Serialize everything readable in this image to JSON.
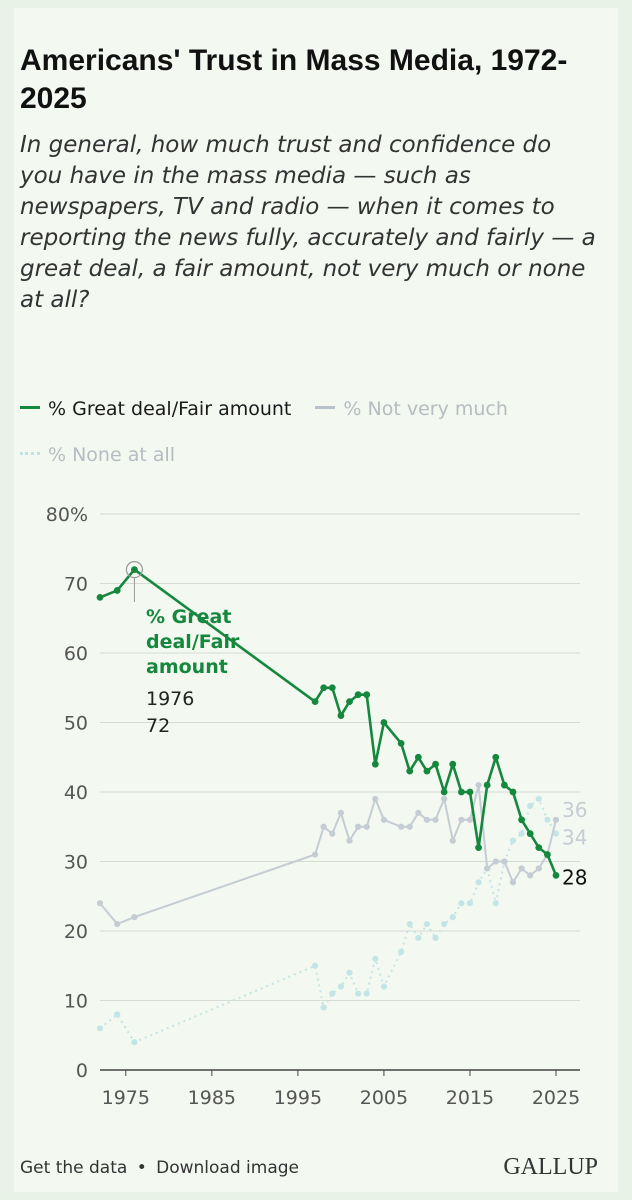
{
  "header": {
    "title": "Americans' Trust in Mass Media, 1972-2025",
    "subtitle": "In general, how much trust and confidence do you have in the mass media — such as newspapers, TV and radio — when it comes to reporting the news fully, accurately and fairly — a great deal, a fair amount, not very much or none at all?"
  },
  "legend": [
    {
      "label": "% Great deal/Fair amount",
      "style": "solid",
      "color": "#16883e",
      "active": true
    },
    {
      "label": "% Not very much",
      "style": "solid",
      "color": "#bfc8d1",
      "active": false
    },
    {
      "label": "% None at all",
      "style": "dotted",
      "color": "#bfe3e4",
      "active": false
    }
  ],
  "footer": {
    "get_data": "Get the data",
    "separator": "•",
    "download": "Download image",
    "logo": "GALLUP"
  },
  "annotation": {
    "series_label_lines": [
      "% Great",
      "deal/Fair",
      "amount"
    ],
    "year": "1976",
    "value": "72"
  },
  "chart_data": {
    "type": "line",
    "title": "Americans' Trust in Mass Media, 1972-2025",
    "xlabel": "",
    "ylabel": "",
    "xlim": [
      1972,
      2025
    ],
    "ylim": [
      0,
      80
    ],
    "x_ticks": [
      1975,
      1985,
      1995,
      2005,
      2015,
      2025
    ],
    "y_ticks": [
      0,
      10,
      20,
      30,
      40,
      50,
      60,
      70,
      80
    ],
    "y_tick_labels": [
      "0",
      "10",
      "20",
      "30",
      "40",
      "50",
      "60",
      "70",
      "80%"
    ],
    "grid": true,
    "legend_position": "top",
    "series": [
      {
        "name": "% Great deal/Fair amount",
        "color": "#16883e",
        "style": "solid",
        "end_label": "28",
        "x": [
          1972,
          1974,
          1976,
          1997,
          1998,
          1999,
          2000,
          2001,
          2002,
          2003,
          2004,
          2005,
          2007,
          2008,
          2009,
          2010,
          2011,
          2012,
          2013,
          2014,
          2015,
          2016,
          2017,
          2018,
          2019,
          2020,
          2021,
          2022,
          2023,
          2024,
          2025
        ],
        "values": [
          68,
          69,
          72,
          53,
          55,
          55,
          51,
          53,
          54,
          54,
          44,
          50,
          47,
          43,
          45,
          43,
          44,
          40,
          44,
          40,
          40,
          32,
          41,
          45,
          41,
          40,
          36,
          34,
          32,
          31,
          28
        ]
      },
      {
        "name": "% Not very much",
        "color": "#c4ccd4",
        "style": "solid",
        "end_label": "36",
        "x": [
          1972,
          1974,
          1976,
          1997,
          1998,
          1999,
          2000,
          2001,
          2002,
          2003,
          2004,
          2005,
          2007,
          2008,
          2009,
          2010,
          2011,
          2012,
          2013,
          2014,
          2015,
          2016,
          2017,
          2018,
          2019,
          2020,
          2021,
          2022,
          2023,
          2024,
          2025
        ],
        "values": [
          24,
          21,
          22,
          31,
          35,
          34,
          37,
          33,
          35,
          35,
          39,
          36,
          35,
          35,
          37,
          36,
          36,
          39,
          33,
          36,
          36,
          41,
          29,
          30,
          30,
          27,
          29,
          28,
          29,
          31,
          36
        ]
      },
      {
        "name": "% None at all",
        "color": "#c3e5e6",
        "style": "dotted",
        "end_label": "34",
        "x": [
          1972,
          1974,
          1976,
          1997,
          1998,
          1999,
          2000,
          2001,
          2002,
          2003,
          2004,
          2005,
          2007,
          2008,
          2009,
          2010,
          2011,
          2012,
          2013,
          2014,
          2015,
          2016,
          2017,
          2018,
          2019,
          2020,
          2021,
          2022,
          2023,
          2024,
          2025
        ],
        "values": [
          6,
          8,
          4,
          15,
          9,
          11,
          12,
          14,
          11,
          11,
          16,
          12,
          17,
          21,
          19,
          21,
          19,
          21,
          22,
          24,
          24,
          27,
          29,
          24,
          30,
          33,
          34,
          38,
          39,
          36,
          34
        ]
      }
    ],
    "highlight": {
      "series": "% Great deal/Fair amount",
      "x": 1976,
      "y": 72
    }
  }
}
